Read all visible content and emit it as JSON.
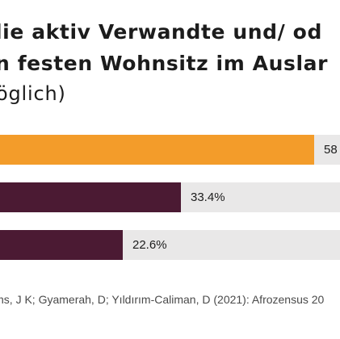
{
  "chart_data": {
    "type": "bar",
    "orientation": "horizontal",
    "title_lines": [
      "lie aktiv Verwandte und/ od",
      "n festen Wohnsitz im Auslar"
    ],
    "subtitle": "öglich)",
    "series": [
      {
        "values": [
          58,
          33.4,
          22.6
        ]
      }
    ],
    "value_labels": [
      "58",
      "33.4%",
      "22.6%"
    ],
    "bar_colors": [
      "#f39c2a",
      "#4b1a33",
      "#4b1a33"
    ],
    "track_color": "#e9e8e8",
    "xlim": [
      0,
      100
    ],
    "grid": false,
    "source": "ns, J K; Gyamerah, D; Yıldırım-Caliman, D (2021): Afrozensus 20"
  }
}
